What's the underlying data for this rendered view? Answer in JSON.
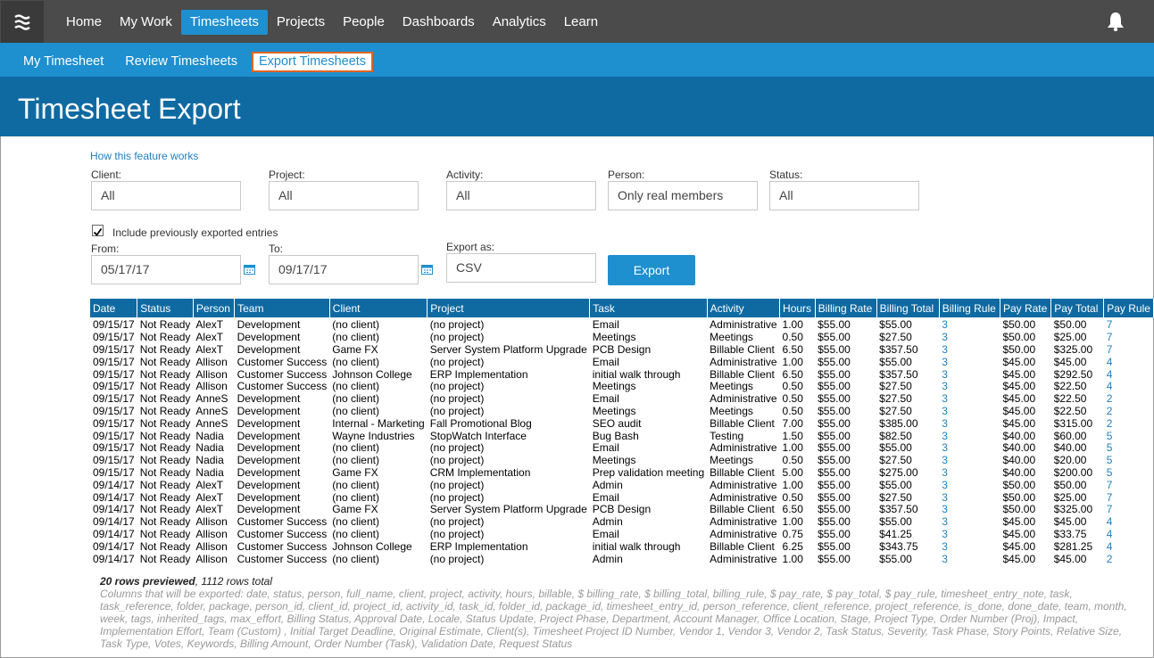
{
  "nav": {
    "items": [
      "Home",
      "My Work",
      "Timesheets",
      "Projects",
      "People",
      "Dashboards",
      "Analytics",
      "Learn"
    ],
    "active": 2
  },
  "subnav": {
    "items": [
      "My Timesheet",
      "Review Timesheets",
      "Export Timesheets"
    ],
    "active": 2
  },
  "header": {
    "title": "Timesheet Export"
  },
  "help_link": "How this feature works",
  "filters": [
    {
      "label": "Client:",
      "value": "All"
    },
    {
      "label": "Project:",
      "value": "All"
    },
    {
      "label": "Activity:",
      "value": "All"
    },
    {
      "label": "Person:",
      "value": "Only real members"
    },
    {
      "label": "Status:",
      "value": "All"
    }
  ],
  "include_checkbox": {
    "label": "Include previously exported entries",
    "checked": true
  },
  "from": {
    "label": "From:",
    "value": "05/17/17"
  },
  "to": {
    "label": "To:",
    "value": "09/17/17"
  },
  "export_as": {
    "label": "Export as:",
    "value": "CSV"
  },
  "export_button": "Export",
  "table": {
    "headers": [
      "Date",
      "Status",
      "Person",
      "Team",
      "Client",
      "Project",
      "Task",
      "Activity",
      "Hours",
      "Billing Rate",
      "Billing Total",
      "Billing Rule",
      "Pay Rate",
      "Pay Total",
      "Pay Rule"
    ],
    "rows": [
      [
        "09/15/17",
        "Not Ready",
        "AlexT",
        "Development",
        "(no client)",
        "(no project)",
        "Email",
        "Administrative",
        "1.00",
        "$55.00",
        "$55.00",
        "3",
        "$50.00",
        "$50.00",
        "7"
      ],
      [
        "09/15/17",
        "Not Ready",
        "AlexT",
        "Development",
        "(no client)",
        "(no project)",
        "Meetings",
        "Meetings",
        "0.50",
        "$55.00",
        "$27.50",
        "3",
        "$50.00",
        "$25.00",
        "7"
      ],
      [
        "09/15/17",
        "Not Ready",
        "AlexT",
        "Development",
        "Game FX",
        "Server System Platform Upgrade",
        "PCB Design",
        "Billable Client",
        "6.50",
        "$55.00",
        "$357.50",
        "3",
        "$50.00",
        "$325.00",
        "7"
      ],
      [
        "09/15/17",
        "Not Ready",
        "Allison",
        "Customer Success",
        "(no client)",
        "(no project)",
        "Email",
        "Administrative",
        "1.00",
        "$55.00",
        "$55.00",
        "3",
        "$45.00",
        "$45.00",
        "4"
      ],
      [
        "09/15/17",
        "Not Ready",
        "Allison",
        "Customer Success",
        "Johnson College",
        "ERP Implementation",
        "initial walk through",
        "Billable Client",
        "6.50",
        "$55.00",
        "$357.50",
        "3",
        "$45.00",
        "$292.50",
        "4"
      ],
      [
        "09/15/17",
        "Not Ready",
        "Allison",
        "Customer Success",
        "(no client)",
        "(no project)",
        "Meetings",
        "Meetings",
        "0.50",
        "$55.00",
        "$27.50",
        "3",
        "$45.00",
        "$22.50",
        "4"
      ],
      [
        "09/15/17",
        "Not Ready",
        "AnneS",
        "Development",
        "(no client)",
        "(no project)",
        "Email",
        "Administrative",
        "0.50",
        "$55.00",
        "$27.50",
        "3",
        "$45.00",
        "$22.50",
        "2"
      ],
      [
        "09/15/17",
        "Not Ready",
        "AnneS",
        "Development",
        "(no client)",
        "(no project)",
        "Meetings",
        "Meetings",
        "0.50",
        "$55.00",
        "$27.50",
        "3",
        "$45.00",
        "$22.50",
        "2"
      ],
      [
        "09/15/17",
        "Not Ready",
        "AnneS",
        "Development",
        "Internal - Marketing",
        "Fall Promotional Blog",
        "SEO audit",
        "Billable Client",
        "7.00",
        "$55.00",
        "$385.00",
        "3",
        "$45.00",
        "$315.00",
        "2"
      ],
      [
        "09/15/17",
        "Not Ready",
        "Nadia",
        "Development",
        "Wayne Industries",
        "StopWatch Interface",
        "Bug Bash",
        "Testing",
        "1.50",
        "$55.00",
        "$82.50",
        "3",
        "$40.00",
        "$60.00",
        "5"
      ],
      [
        "09/15/17",
        "Not Ready",
        "Nadia",
        "Development",
        "(no client)",
        "(no project)",
        "Email",
        "Administrative",
        "1.00",
        "$55.00",
        "$55.00",
        "3",
        "$40.00",
        "$40.00",
        "5"
      ],
      [
        "09/15/17",
        "Not Ready",
        "Nadia",
        "Development",
        "(no client)",
        "(no project)",
        "Meetings",
        "Meetings",
        "0.50",
        "$55.00",
        "$27.50",
        "3",
        "$40.00",
        "$20.00",
        "5"
      ],
      [
        "09/15/17",
        "Not Ready",
        "Nadia",
        "Development",
        "Game FX",
        "CRM Implementation",
        "Prep validation meeting",
        "Billable Client",
        "5.00",
        "$55.00",
        "$275.00",
        "3",
        "$40.00",
        "$200.00",
        "5"
      ],
      [
        "09/14/17",
        "Not Ready",
        "AlexT",
        "Development",
        "(no client)",
        "(no project)",
        "Admin",
        "Administrative",
        "1.00",
        "$55.00",
        "$55.00",
        "3",
        "$50.00",
        "$50.00",
        "7"
      ],
      [
        "09/14/17",
        "Not Ready",
        "AlexT",
        "Development",
        "(no client)",
        "(no project)",
        "Email",
        "Administrative",
        "0.50",
        "$55.00",
        "$27.50",
        "3",
        "$50.00",
        "$25.00",
        "7"
      ],
      [
        "09/14/17",
        "Not Ready",
        "AlexT",
        "Development",
        "Game FX",
        "Server System Platform Upgrade",
        "PCB Design",
        "Billable Client",
        "6.50",
        "$55.00",
        "$357.50",
        "3",
        "$50.00",
        "$325.00",
        "7"
      ],
      [
        "09/14/17",
        "Not Ready",
        "Allison",
        "Customer Success",
        "(no client)",
        "(no project)",
        "Admin",
        "Administrative",
        "1.00",
        "$55.00",
        "$55.00",
        "3",
        "$45.00",
        "$45.00",
        "4"
      ],
      [
        "09/14/17",
        "Not Ready",
        "Allison",
        "Customer Success",
        "(no client)",
        "(no project)",
        "Email",
        "Administrative",
        "0.75",
        "$55.00",
        "$41.25",
        "3",
        "$45.00",
        "$33.75",
        "4"
      ],
      [
        "09/14/17",
        "Not Ready",
        "Allison",
        "Customer Success",
        "Johnson College",
        "ERP Implementation",
        "initial walk through",
        "Billable Client",
        "6.25",
        "$55.00",
        "$343.75",
        "3",
        "$45.00",
        "$281.25",
        "4"
      ],
      [
        "09/14/17",
        "Not Ready",
        "Allison",
        "Customer Success",
        "(no client)",
        "(no project)",
        "Admin",
        "Administrative",
        "1.00",
        "$55.00",
        "$55.00",
        "3",
        "$45.00",
        "$45.00",
        "2"
      ]
    ]
  },
  "footer": {
    "previewed": "20 rows previewed",
    "total": ", 1112 rows total",
    "columns": "Columns that will be exported: date, status, person, full_name, client, project, activity, hours, billable, $ billing_rate, $ billing_total, billing_rule, $ pay_rate, $ pay_total, $ pay_rule, timesheet_entry_note, task, task_reference, folder, package, person_id, client_id, project_id, activity_id, task_id, folder_id, package_id, timesheet_entry_id, person_reference, client_reference, project_reference, is_done, done_date, team, month, week, tags, inherited_tags, max_effort, Billing Status, Approval Date, Locale, Status Update, Project Phase, Department, Account Manager, Office Location, Stage, Project Type, Order Number (Proj), Impact, Implementation Effort, Team (Custom) , Initial Target Deadline, Original Estimate, Client(s), Timesheet Project ID Number, Vendor 1, Vendor 3, Vendor 2, Task Status, Severity, Task Phase, Story Points, Relative Size, Task Type, Votes, Keywords, Billing Amount, Order Number (Task), Validation Date, Request Status"
  }
}
